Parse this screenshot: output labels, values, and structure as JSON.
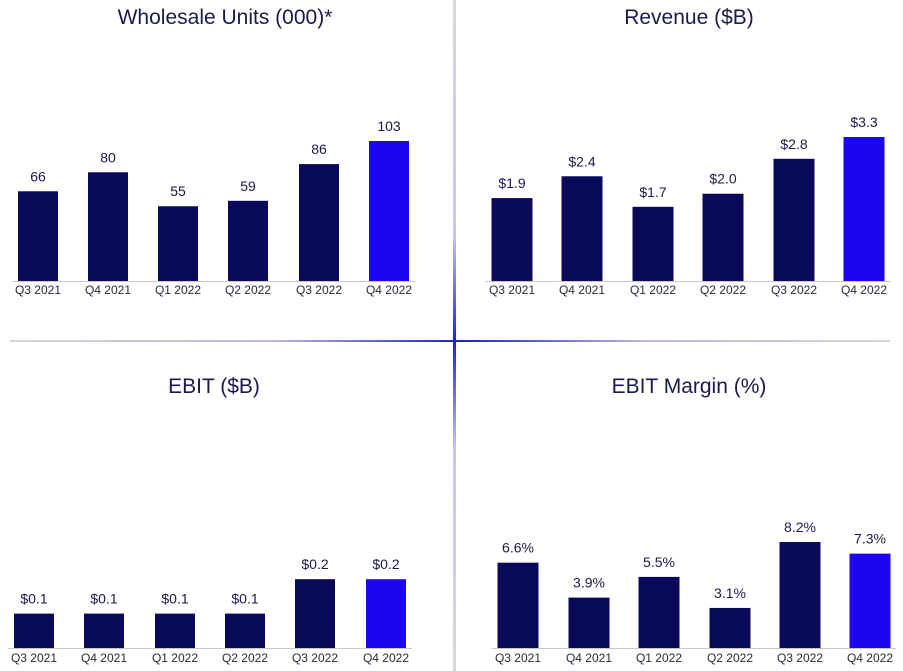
{
  "colors": {
    "bar": "#0a0a5a",
    "highlight": "#1c06f2",
    "axis": "#c8c8c8",
    "text": "#1a1a4e"
  },
  "chart_data": [
    {
      "type": "bar",
      "title": "Wholesale Units (000)*",
      "categories": [
        "Q3 2021",
        "Q4 2021",
        "Q1 2022",
        "Q2 2022",
        "Q3 2022",
        "Q4 2022"
      ],
      "values": [
        66,
        80,
        55,
        59,
        86,
        103
      ],
      "data_labels": [
        "66",
        "80",
        "55",
        "59",
        "86",
        "103"
      ],
      "highlight_index": 5,
      "ylim": [
        0,
        103
      ],
      "grid": false
    },
    {
      "type": "bar",
      "title": "Revenue ($B)",
      "categories": [
        "Q3 2021",
        "Q4 2021",
        "Q1 2022",
        "Q2 2022",
        "Q3 2022",
        "Q4 2022"
      ],
      "values": [
        1.9,
        2.4,
        1.7,
        2.0,
        2.8,
        3.3
      ],
      "data_labels": [
        "$1.9",
        "$2.4",
        "$1.7",
        "$2.0",
        "$2.8",
        "$3.3"
      ],
      "highlight_index": 5,
      "ylim": [
        0,
        3.3
      ],
      "grid": false
    },
    {
      "type": "bar",
      "title": "EBIT ($B)",
      "categories": [
        "Q3 2021",
        "Q4 2021",
        "Q1 2022",
        "Q2 2022",
        "Q3 2022",
        "Q4 2022"
      ],
      "values": [
        0.1,
        0.1,
        0.1,
        0.1,
        0.2,
        0.2
      ],
      "data_labels": [
        "$0.1",
        "$0.1",
        "$0.1",
        "$0.1",
        "$0.2",
        "$0.2"
      ],
      "highlight_index": 5,
      "ylim": [
        0,
        1.0
      ],
      "grid": false
    },
    {
      "type": "bar",
      "title": "EBIT Margin (%)",
      "categories": [
        "Q3 2021",
        "Q4 2021",
        "Q1 2022",
        "Q2 2022",
        "Q3 2022",
        "Q4 2022"
      ],
      "values": [
        6.6,
        3.9,
        5.5,
        3.1,
        8.2,
        7.3
      ],
      "data_labels": [
        "6.6%",
        "3.9%",
        "5.5%",
        "3.1%",
        "8.2%",
        "7.3%"
      ],
      "highlight_index": 5,
      "ylim": [
        0,
        8.2
      ],
      "grid": false
    }
  ]
}
